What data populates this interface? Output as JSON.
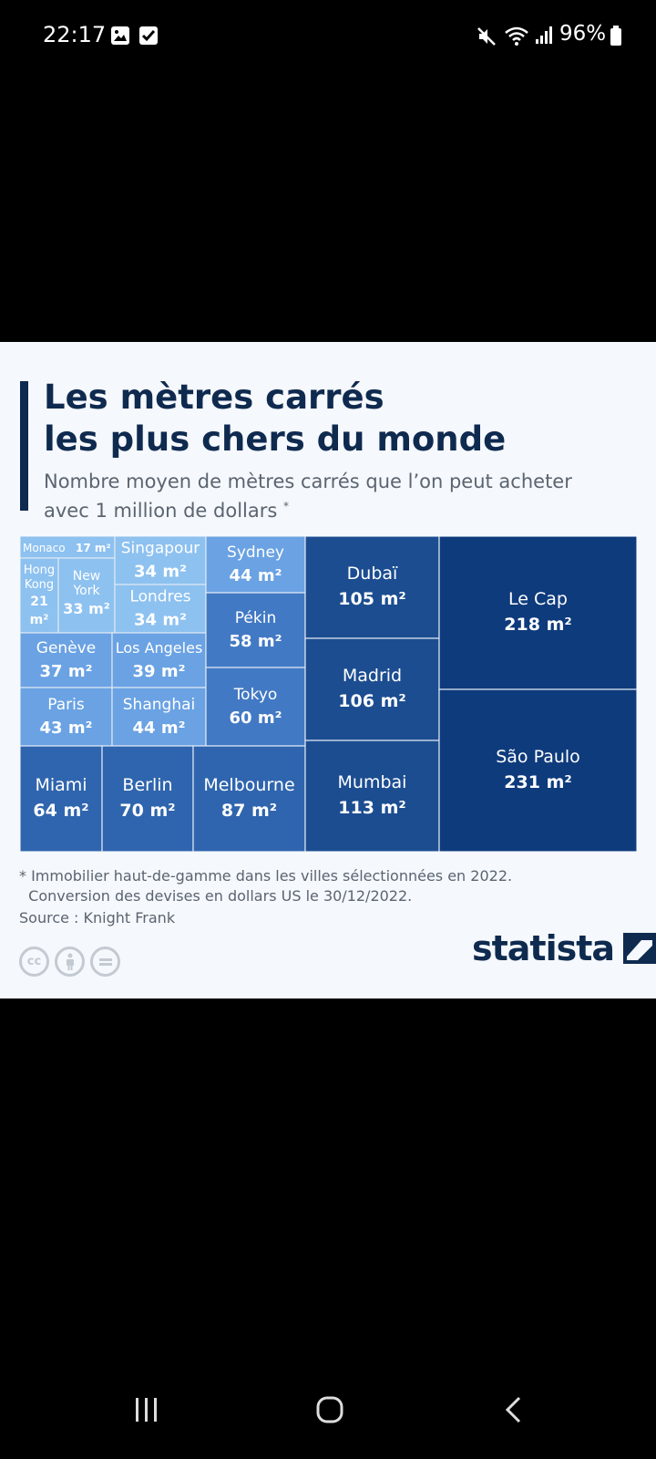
{
  "status": {
    "time": "22:17",
    "battery": "96%"
  },
  "chart": {
    "title_line1": "Les mètres carrés",
    "title_line2": "les plus chers du monde",
    "subtitle_line1": "Nombre moyen de mètres carrés que l’on peut acheter",
    "subtitle_line2": "avec 1 million de dollars",
    "subtitle_mark": "*",
    "footnote_line1": "* Immobilier haut-de-gamme dans les villes sélectionnées en 2022.",
    "footnote_line2": "  Conversion des devises en dollars US le 30/12/2022.",
    "source": "Source : Knight Frank",
    "brand": "statista",
    "colors": {
      "darkest": "#0e3b7c",
      "dark": "#1c4d91",
      "mid_dark": "#2f65ae",
      "mid": "#4279c4",
      "light": "#6aa2e3",
      "lightest": "#8dc1f0",
      "title": "#0f2a4f"
    }
  },
  "chart_data": {
    "type": "treemap",
    "title": "Les mètres carrés les plus chers du monde",
    "subtitle": "Nombre moyen de mètres carrés que l’on peut acheter avec 1 million de dollars *",
    "unit": "m²",
    "categories": [
      "Monaco",
      "Hong Kong",
      "New York",
      "Singapour",
      "Londres",
      "Sydney",
      "Genève",
      "Los Angeles",
      "Paris",
      "Shanghai",
      "Pékin",
      "Tokyo",
      "Miami",
      "Berlin",
      "Melbourne",
      "Dubaï",
      "Madrid",
      "Mumbai",
      "Le Cap",
      "São Paulo"
    ],
    "values": [
      17,
      21,
      33,
      34,
      34,
      44,
      37,
      39,
      43,
      44,
      58,
      60,
      64,
      70,
      87,
      105,
      106,
      113,
      218,
      231
    ],
    "labels": [
      "Monaco 17 m²",
      "Hong Kong 21 m²",
      "New York 33 m²",
      "Singapour 34 m²",
      "Londres 34 m²",
      "Sydney 44 m²",
      "Genève 37 m²",
      "Los Angeles 39 m²",
      "Paris 43 m²",
      "Shanghai 44 m²",
      "Pékin 58 m²",
      "Tokyo 60 m²",
      "Miami 64 m²",
      "Berlin 70 m²",
      "Melbourne 87 m²",
      "Dubaï 105 m²",
      "Madrid 106 m²",
      "Mumbai 113 m²",
      "Le Cap 218 m²",
      "São Paulo 231 m²"
    ]
  }
}
